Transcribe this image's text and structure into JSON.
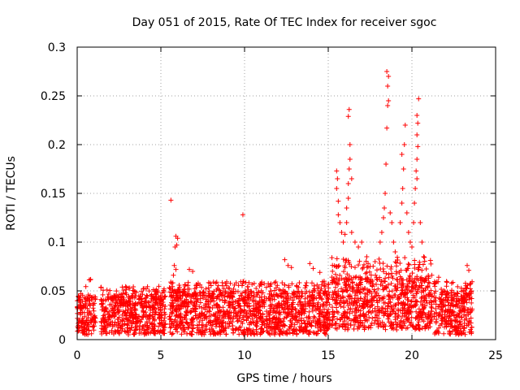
{
  "chart_data": {
    "type": "scatter",
    "title": "Day 051 of 2015, Rate Of TEC Index for receiver sgoc",
    "xlabel": "GPS time / hours",
    "ylabel": "ROTI / TECUs",
    "xlim": [
      0,
      25
    ],
    "ylim": [
      0,
      0.3
    ],
    "grid": true,
    "x_ticks": [
      {
        "value": 0,
        "label": "0"
      },
      {
        "value": 5,
        "label": "5"
      },
      {
        "value": 10,
        "label": "10"
      },
      {
        "value": 15,
        "label": "15"
      },
      {
        "value": 20,
        "label": "20"
      },
      {
        "value": 25,
        "label": "25"
      }
    ],
    "y_ticks": [
      {
        "value": 0,
        "label": "0"
      },
      {
        "value": 0.05,
        "label": "0.05"
      },
      {
        "value": 0.1,
        "label": "0.1"
      },
      {
        "value": 0.15,
        "label": "0.15"
      },
      {
        "value": 0.2,
        "label": "0.2"
      },
      {
        "value": 0.25,
        "label": "0.25"
      },
      {
        "value": 0.3,
        "label": "0.3"
      }
    ],
    "marker": "+",
    "color": "#ff0000",
    "segments": [
      {
        "start": 0.0,
        "end": 1.1,
        "low": 0.005,
        "base": 0.045,
        "peak": 0.063
      },
      {
        "start": 1.4,
        "end": 5.3,
        "low": 0.005,
        "base": 0.045,
        "peak": 0.055
      },
      {
        "start": 5.5,
        "end": 11.2,
        "low": 0.005,
        "base": 0.05,
        "peak": 0.06
      },
      {
        "start": 11.3,
        "end": 15.1,
        "low": 0.005,
        "base": 0.05,
        "peak": 0.06
      },
      {
        "start": 15.2,
        "end": 21.2,
        "low": 0.01,
        "base": 0.065,
        "peak": 0.085
      },
      {
        "start": 21.3,
        "end": 23.6,
        "low": 0.005,
        "base": 0.05,
        "peak": 0.06
      }
    ],
    "spikes": [
      {
        "x": 5.6,
        "y": 0.143
      },
      {
        "x": 5.9,
        "y": 0.106
      },
      {
        "x": 6.0,
        "y": 0.104
      },
      {
        "x": 5.85,
        "y": 0.095
      },
      {
        "x": 5.95,
        "y": 0.097
      },
      {
        "x": 5.8,
        "y": 0.076
      },
      {
        "x": 5.9,
        "y": 0.072
      },
      {
        "x": 5.75,
        "y": 0.066
      },
      {
        "x": 6.7,
        "y": 0.072
      },
      {
        "x": 6.9,
        "y": 0.07
      },
      {
        "x": 9.9,
        "y": 0.128
      },
      {
        "x": 12.4,
        "y": 0.082
      },
      {
        "x": 12.6,
        "y": 0.076
      },
      {
        "x": 12.8,
        "y": 0.074
      },
      {
        "x": 13.9,
        "y": 0.078
      },
      {
        "x": 14.1,
        "y": 0.073
      },
      {
        "x": 14.5,
        "y": 0.069
      },
      {
        "x": 15.5,
        "y": 0.173
      },
      {
        "x": 15.55,
        "y": 0.165
      },
      {
        "x": 15.5,
        "y": 0.155
      },
      {
        "x": 15.6,
        "y": 0.142
      },
      {
        "x": 15.6,
        "y": 0.128
      },
      {
        "x": 15.7,
        "y": 0.12
      },
      {
        "x": 15.8,
        "y": 0.11
      },
      {
        "x": 15.9,
        "y": 0.1
      },
      {
        "x": 16.0,
        "y": 0.108
      },
      {
        "x": 16.1,
        "y": 0.12
      },
      {
        "x": 16.1,
        "y": 0.135
      },
      {
        "x": 16.2,
        "y": 0.145
      },
      {
        "x": 16.2,
        "y": 0.16
      },
      {
        "x": 16.25,
        "y": 0.175
      },
      {
        "x": 16.3,
        "y": 0.185
      },
      {
        "x": 16.3,
        "y": 0.2
      },
      {
        "x": 16.2,
        "y": 0.229
      },
      {
        "x": 16.25,
        "y": 0.236
      },
      {
        "x": 16.4,
        "y": 0.165
      },
      {
        "x": 16.4,
        "y": 0.11
      },
      {
        "x": 16.6,
        "y": 0.1
      },
      {
        "x": 16.8,
        "y": 0.095
      },
      {
        "x": 17.0,
        "y": 0.1
      },
      {
        "x": 17.3,
        "y": 0.085
      },
      {
        "x": 17.5,
        "y": 0.075
      },
      {
        "x": 17.8,
        "y": 0.08
      },
      {
        "x": 18.1,
        "y": 0.1
      },
      {
        "x": 18.2,
        "y": 0.11
      },
      {
        "x": 18.3,
        "y": 0.125
      },
      {
        "x": 18.35,
        "y": 0.135
      },
      {
        "x": 18.4,
        "y": 0.15
      },
      {
        "x": 18.45,
        "y": 0.18
      },
      {
        "x": 18.5,
        "y": 0.217
      },
      {
        "x": 18.55,
        "y": 0.24
      },
      {
        "x": 18.6,
        "y": 0.245
      },
      {
        "x": 18.55,
        "y": 0.26
      },
      {
        "x": 18.6,
        "y": 0.27
      },
      {
        "x": 18.5,
        "y": 0.275
      },
      {
        "x": 18.7,
        "y": 0.13
      },
      {
        "x": 18.8,
        "y": 0.12
      },
      {
        "x": 18.9,
        "y": 0.1
      },
      {
        "x": 19.0,
        "y": 0.09
      },
      {
        "x": 19.3,
        "y": 0.12
      },
      {
        "x": 19.4,
        "y": 0.14
      },
      {
        "x": 19.45,
        "y": 0.155
      },
      {
        "x": 19.5,
        "y": 0.175
      },
      {
        "x": 19.4,
        "y": 0.19
      },
      {
        "x": 19.55,
        "y": 0.2
      },
      {
        "x": 19.6,
        "y": 0.22
      },
      {
        "x": 19.7,
        "y": 0.13
      },
      {
        "x": 19.8,
        "y": 0.11
      },
      {
        "x": 19.9,
        "y": 0.1
      },
      {
        "x": 20.0,
        "y": 0.095
      },
      {
        "x": 20.1,
        "y": 0.12
      },
      {
        "x": 20.15,
        "y": 0.14
      },
      {
        "x": 20.2,
        "y": 0.155
      },
      {
        "x": 20.3,
        "y": 0.165
      },
      {
        "x": 20.25,
        "y": 0.173
      },
      {
        "x": 20.3,
        "y": 0.185
      },
      {
        "x": 20.35,
        "y": 0.198
      },
      {
        "x": 20.3,
        "y": 0.21
      },
      {
        "x": 20.35,
        "y": 0.222
      },
      {
        "x": 20.3,
        "y": 0.23
      },
      {
        "x": 20.4,
        "y": 0.247
      },
      {
        "x": 20.5,
        "y": 0.12
      },
      {
        "x": 20.6,
        "y": 0.1
      },
      {
        "x": 20.7,
        "y": 0.085
      },
      {
        "x": 21.6,
        "y": 0.064
      },
      {
        "x": 23.3,
        "y": 0.076
      },
      {
        "x": 23.4,
        "y": 0.071
      }
    ]
  }
}
